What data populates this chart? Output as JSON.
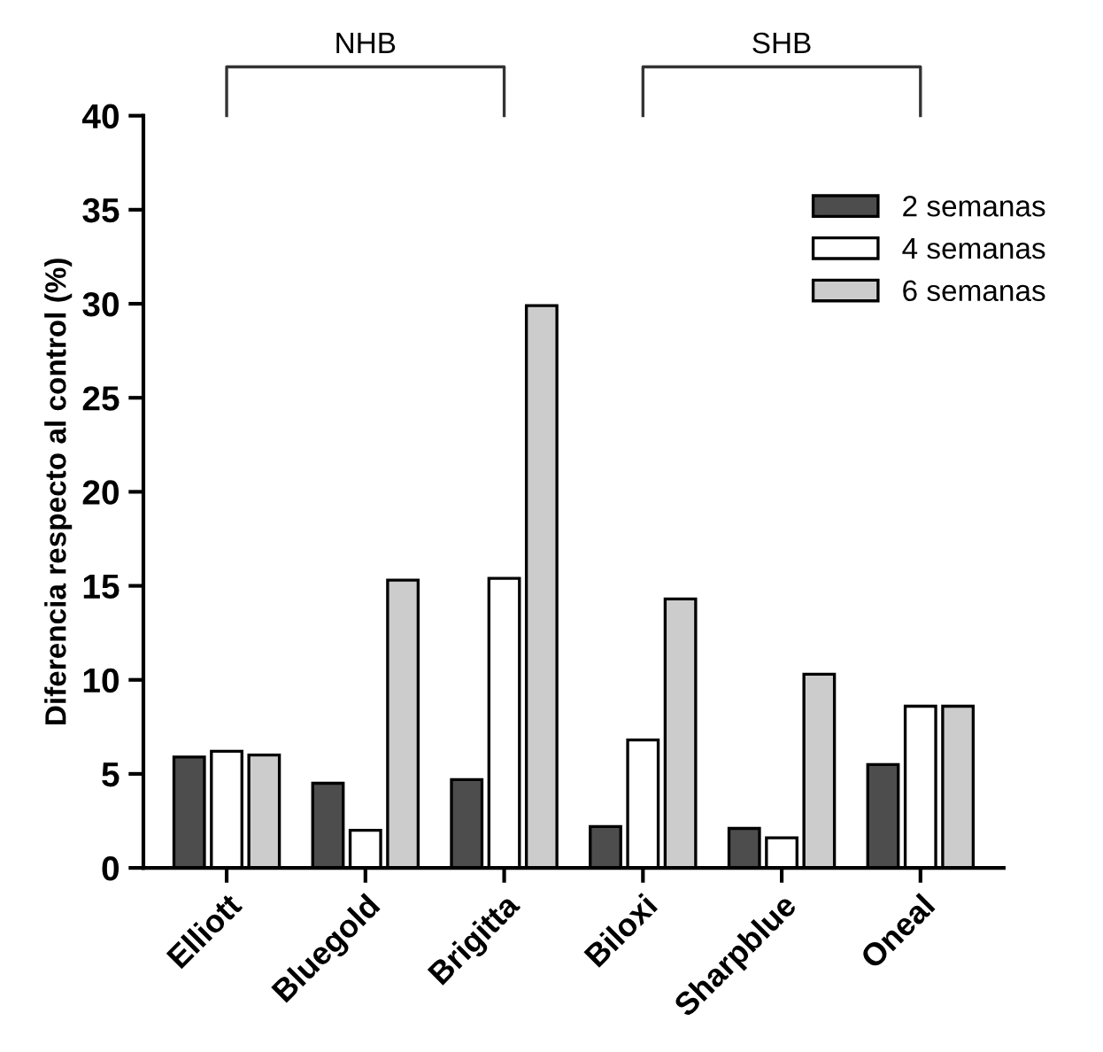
{
  "chart_data": {
    "type": "bar",
    "ylabel": "Diferencia respecto al control (%)",
    "categories": [
      "Elliott",
      "Bluegold",
      "Brigitta",
      "Biloxi",
      "Sharpblue",
      "Oneal"
    ],
    "series": [
      {
        "name": "2 semanas",
        "color": "#4d4d4d",
        "values": [
          5.9,
          4.5,
          4.7,
          2.2,
          2.1,
          5.5
        ]
      },
      {
        "name": "4 semanas",
        "color": "#ffffff",
        "values": [
          6.2,
          2.0,
          15.4,
          6.8,
          1.6,
          8.6
        ]
      },
      {
        "name": "6 semanas",
        "color": "#cccccc",
        "values": [
          6.0,
          15.3,
          29.9,
          14.3,
          10.3,
          8.6
        ]
      }
    ],
    "ylim": [
      0,
      40
    ],
    "yticks": [
      0,
      5,
      10,
      15,
      20,
      25,
      30,
      35,
      40
    ],
    "annotations": [
      "NHB",
      "SHB"
    ],
    "grid": false,
    "legend": "top right"
  }
}
